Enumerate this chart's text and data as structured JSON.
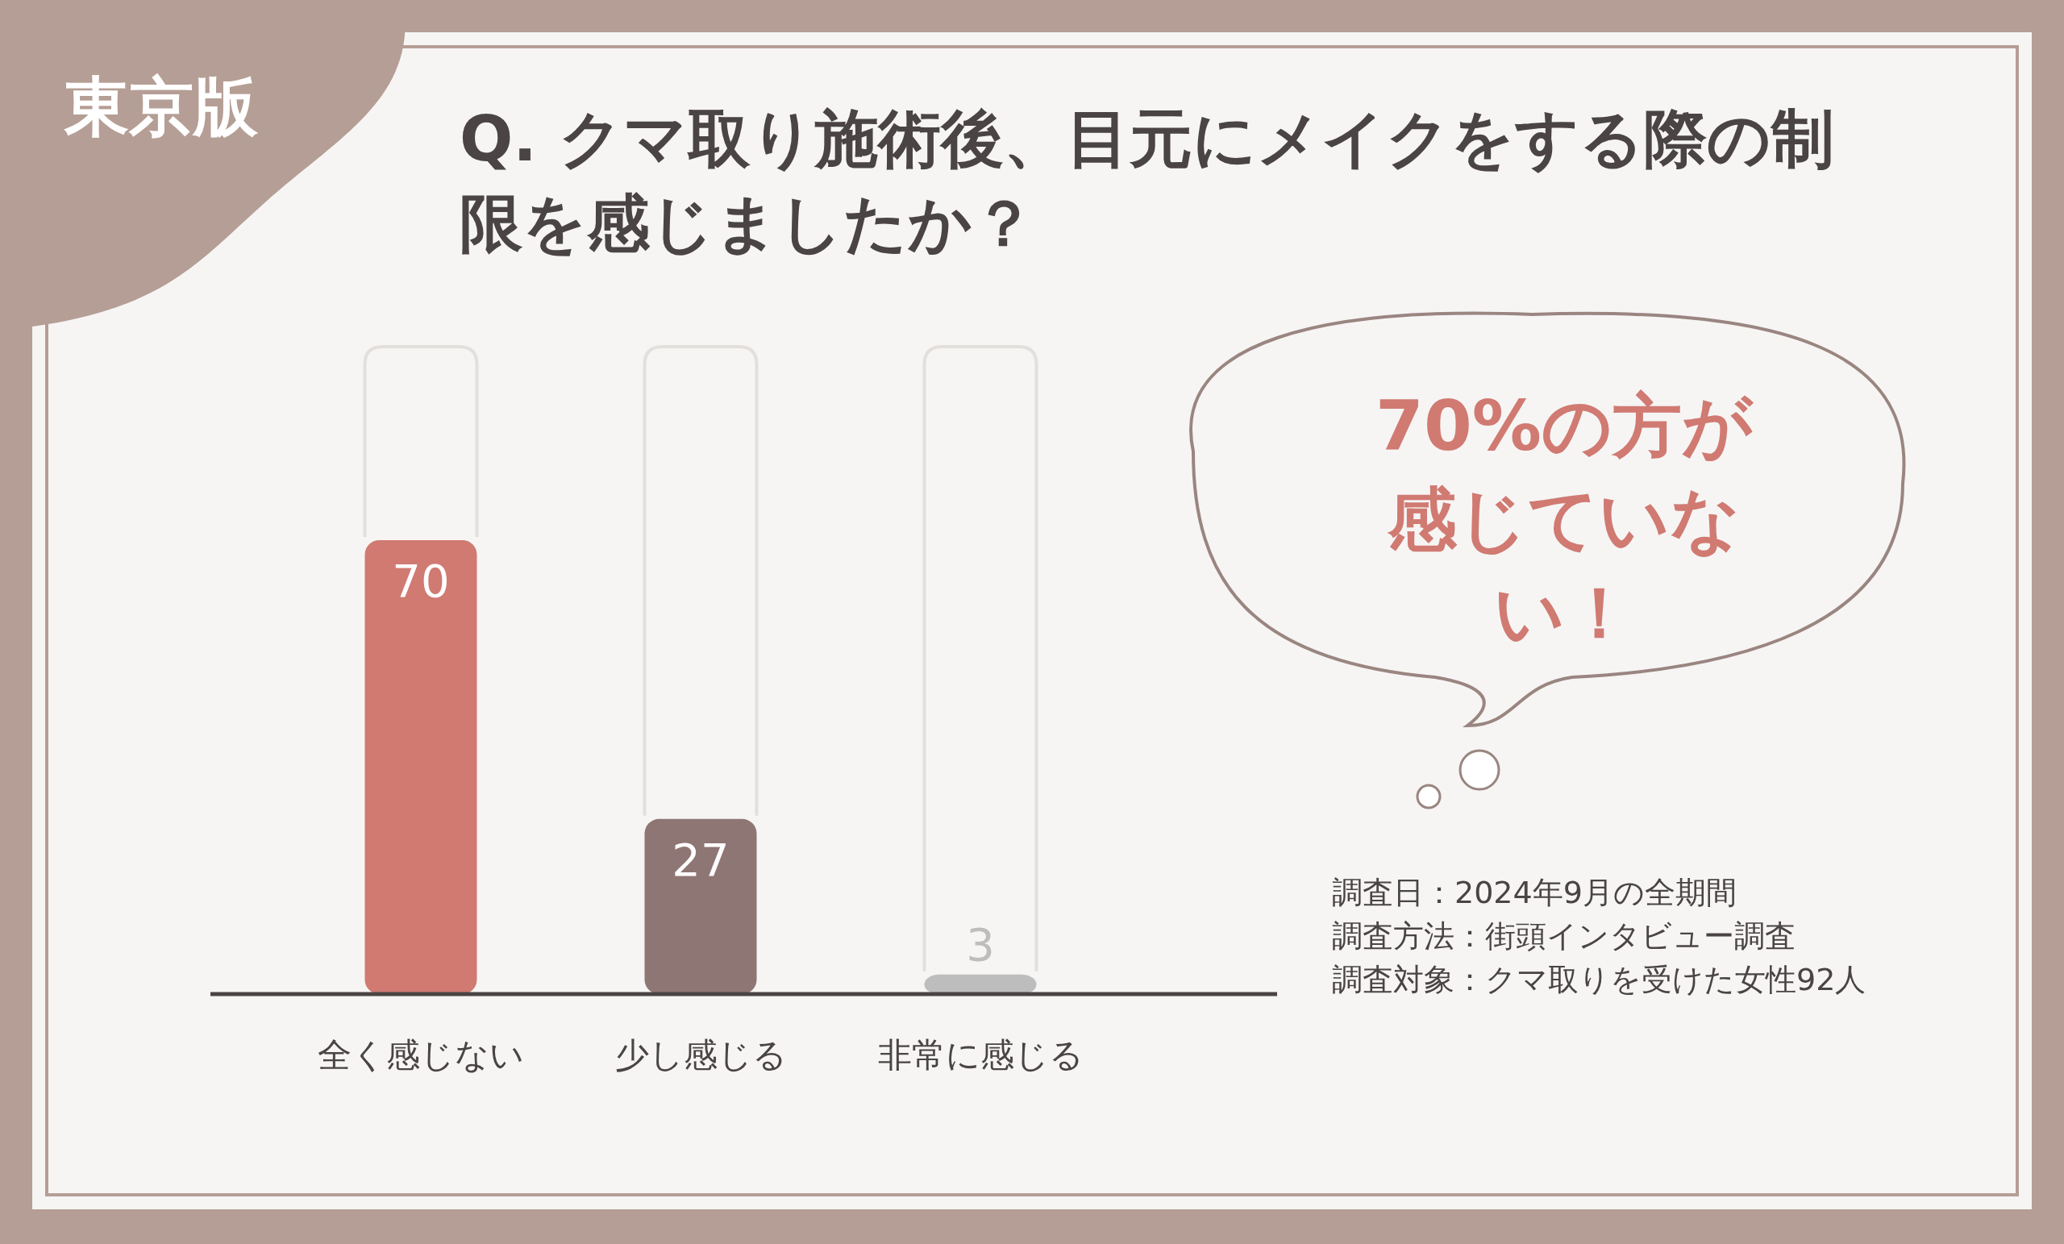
{
  "chart_data": {
    "type": "bar",
    "subtitle": "東京版",
    "title": "Q. クマ取り施術後、目元にメイクをする際の制限を感じましたか？",
    "categories": [
      "全く感じない",
      "少し感じる",
      "非常に感じる"
    ],
    "values": [
      70,
      27,
      3
    ],
    "colors": [
      "#d07a72",
      "#8e7674",
      "#bdbdbd"
    ],
    "data_labels": true,
    "annotations": [
      "70%の方が感じていない！",
      "調査日：2024年9月の全期間",
      "調査方法：街頭インタビュー調査",
      "調査対象：クマ取りを受けた女性92人"
    ]
  }
}
